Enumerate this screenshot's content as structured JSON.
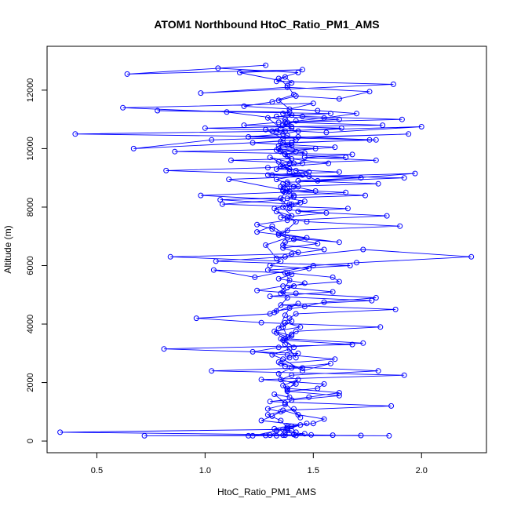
{
  "chart_data": {
    "type": "line",
    "title": "ATOM1 Northbound HtoC_Ratio_PM1_AMS",
    "xlabel": "HtoC_Ratio_PM1_AMS",
    "ylabel": "Altitude (m)",
    "xlim": [
      0.27,
      2.3
    ],
    "ylim": [
      -400,
      13500
    ],
    "xticks": [
      0.5,
      1.0,
      1.5,
      2.0
    ],
    "xtick_labels": [
      "0.5",
      "1.0",
      "1.5",
      "2.0"
    ],
    "yticks": [
      0,
      2000,
      4000,
      6000,
      8000,
      10000,
      12000
    ],
    "ytick_labels": [
      "0",
      "2000",
      "4000",
      "6000",
      "8000",
      "10000",
      "12000"
    ],
    "grid": false,
    "legend": "none",
    "markers": "open-circle",
    "series": [
      {
        "color": "#0000ff",
        "x": [
          1.42,
          1.36,
          1.3,
          1.22,
          1.33,
          1.4,
          1.47,
          1.38,
          1.35,
          1.29,
          1.41,
          1.44,
          1.37,
          1.32,
          1.39,
          1.36,
          1.43,
          1.38,
          1.34,
          1.4,
          1.58,
          1.45,
          1.36,
          1.31,
          1.39,
          1.42,
          1.37,
          1.35,
          1.41,
          1.33,
          1.38,
          1.36,
          1.4,
          1.34,
          1.37,
          1.39,
          1.43,
          1.32,
          1.38,
          1.36,
          1.41,
          1.35,
          1.39,
          1.37,
          1.04,
          1.23,
          1.5,
          1.7,
          2.23,
          1.73,
          1.33,
          1.28,
          1.38,
          1.62,
          1.24,
          1.31,
          1.36,
          1.42,
          1.38,
          1.33,
          1.4,
          1.36,
          1.44,
          1.39,
          1.35,
          1.37,
          1.41,
          1.38,
          1.36,
          1.39,
          1.11,
          1.48,
          1.97,
          1.52,
          1.42,
          1.36,
          1.39,
          1.34,
          1.3,
          1.41,
          1.37,
          1.33,
          1.46,
          1.38,
          1.35,
          0.67,
          1.03,
          1.94,
          1.36,
          1.28,
          1.56,
          2.0,
          1.31,
          1.38,
          1.42,
          1.35,
          1.29,
          1.4,
          1.37,
          1.1,
          0.62,
          1.5,
          1.39,
          1.34,
          1.42,
          1.62,
          1.76,
          1.38,
          0.98,
          1.87,
          1.33,
          1.37,
          1.4,
          1.16,
          1.45,
          0.64,
          1.28,
          1.06,
          1.43,
          1.34,
          1.38,
          1.41,
          1.31,
          1.18,
          1.52,
          1.7,
          1.55,
          1.37,
          1.36,
          1.4,
          1.33,
          1.38,
          1.42,
          1.22,
          1.6,
          1.35,
          1.38,
          1.4,
          1.57,
          1.29,
          0.82,
          1.45,
          1.33,
          1.38,
          1.41,
          1.51,
          0.98,
          1.36,
          1.08,
          1.66,
          1.43,
          1.84,
          1.38,
          1.24,
          1.31,
          1.34,
          1.47,
          1.37,
          1.36,
          1.55,
          1.4,
          0.84,
          1.35,
          1.3,
          1.48,
          1.38,
          1.59,
          1.62,
          1.36,
          1.24,
          1.42,
          1.79,
          1.55,
          1.46,
          1.33,
          1.3,
          0.96,
          1.26,
          1.81,
          1.42,
          1.4,
          1.37,
          1.73,
          1.34,
          1.22,
          1.38,
          1.6,
          1.35,
          1.45,
          1.03,
          1.92,
          1.26,
          1.55,
          1.52,
          1.38,
          1.62,
          1.4,
          1.37,
          1.29,
          1.35,
          1.31,
          1.26,
          1.44,
          1.38,
          0.33,
          1.59,
          1.2,
          1.72,
          0.72,
          1.37,
          1.85,
          1.42,
          1.36,
          1.49,
          1.28,
          1.33,
          1.41,
          1.46,
          1.37,
          1.4,
          1.32,
          1.38,
          1.5,
          1.55,
          1.43,
          1.36,
          1.86,
          1.3,
          1.48,
          1.62,
          1.38,
          1.42,
          1.35,
          1.4,
          1.8,
          1.37,
          1.34,
          1.39,
          1.43,
          0.81,
          1.68,
          1.36,
          1.4,
          1.32,
          1.44,
          1.37,
          1.39,
          1.42,
          1.88,
          1.35,
          1.77,
          1.3,
          1.59,
          1.38,
          1.46,
          1.34,
          1.4,
          1.29,
          1.67,
          1.05,
          1.37,
          1.43,
          1.36,
          1.52,
          1.41,
          1.34,
          1.38,
          1.9,
          1.47,
          1.35,
          1.56,
          1.32,
          1.4,
          1.07,
          1.74,
          1.36,
          1.43,
          1.38,
          1.92,
          1.31,
          1.48,
          1.39,
          1.35,
          1.45,
          1.12,
          1.65,
          1.37,
          1.42,
          1.34,
          1.4,
          1.36,
          1.79,
          1.43,
          0.4,
          1.37,
          1.63,
          1.4,
          1.18,
          1.34,
          1.91,
          1.45,
          1.36,
          1.39,
          0.78,
          1.58,
          1.33,
          1.62,
          1.38,
          1.82,
          1.0,
          1.43,
          1.36,
          1.2,
          1.76,
          1.4,
          1.34,
          1.51,
          0.86,
          1.68,
          1.46,
          1.79,
          1.39,
          1.35,
          1.33,
          1.62,
          1.29,
          1.72,
          1.43,
          1.8,
          1.35,
          1.36,
          1.65,
          1.41,
          1.38,
          1.46,
          1.39
        ],
        "y": [
          300,
          400,
          200,
          180,
          350,
          500,
          600,
          450,
          700,
          900,
          1100,
          800,
          1300,
          1600,
          1500,
          1900,
          2100,
          1750,
          2300,
          2500,
          2650,
          2400,
          2800,
          2950,
          3150,
          2850,
          3300,
          3500,
          3200,
          3700,
          3550,
          3900,
          4100,
          3850,
          4300,
          4550,
          4700,
          4400,
          4900,
          5100,
          5300,
          5050,
          5500,
          5750,
          5850,
          5600,
          6000,
          6100,
          6300,
          6550,
          6250,
          6700,
          6950,
          6800,
          7150,
          7350,
          7100,
          7500,
          7650,
          7850,
          7700,
          8000,
          8150,
          7950,
          8300,
          8500,
          8350,
          8650,
          8800,
          8550,
          8950,
          9050,
          9150,
          8900,
          9250,
          9400,
          9200,
          9550,
          9700,
          9500,
          9800,
          9950,
          9850,
          10100,
          10250,
          10000,
          10300,
          10500,
          10350,
          10650,
          10550,
          10750,
          10600,
          10850,
          10950,
          10700,
          11050,
          11150,
          11000,
          11250,
          11400,
          11550,
          11350,
          11650,
          11800,
          11700,
          11950,
          12100,
          11900,
          12200,
          12300,
          12450,
          12250,
          12600,
          12700,
          12550,
          12850,
          12750,
          12600,
          12400,
          12150,
          11850,
          11600,
          11450,
          11300,
          11200,
          11050,
          10900,
          10800,
          10700,
          10600,
          10450,
          10300,
          10200,
          10050,
          9900,
          9750,
          9650,
          9500,
          9350,
          9250,
          9100,
          8950,
          8800,
          8700,
          8550,
          8400,
          8250,
          8100,
          7950,
          7850,
          7700,
          7550,
          7400,
          7250,
          7100,
          6950,
          6800,
          6700,
          6550,
          6400,
          6300,
          6150,
          6000,
          5900,
          5750,
          5600,
          5450,
          5300,
          5150,
          5050,
          4900,
          4750,
          4600,
          4450,
          4350,
          4200,
          4050,
          3900,
          3750,
          3650,
          3500,
          3350,
          3200,
          3050,
          2950,
          2800,
          2650,
          2500,
          2400,
          2250,
          2100,
          1950,
          1800,
          1700,
          1550,
          1400,
          1250,
          1100,
          1000,
          850,
          700,
          550,
          400,
          300,
          200,
          180,
          190,
          180,
          200,
          180,
          190,
          200,
          210,
          190,
          180,
          220,
          250,
          300,
          350,
          420,
          500,
          600,
          750,
          900,
          1050,
          1200,
          1350,
          1500,
          1650,
          1800,
          1950,
          2100,
          2250,
          2400,
          2550,
          2700,
          2850,
          3000,
          3150,
          3300,
          3450,
          3600,
          3750,
          3900,
          4050,
          4200,
          4350,
          4500,
          4650,
          4800,
          4950,
          5100,
          5250,
          5400,
          5550,
          5700,
          5850,
          6000,
          6150,
          6300,
          6450,
          6600,
          6750,
          6900,
          7050,
          7200,
          7350,
          7500,
          7650,
          7800,
          7950,
          8100,
          8250,
          8400,
          8550,
          8700,
          8850,
          9000,
          9100,
          9200,
          9300,
          9400,
          9500,
          9600,
          9700,
          9800,
          9900,
          10000,
          10100,
          10200,
          10300,
          10400,
          10500,
          10600,
          10700,
          10750,
          10800,
          10900,
          11000,
          11100,
          11200,
          11250,
          11300,
          11200,
          11100,
          11000,
          10900,
          10800,
          10700,
          10600,
          10500,
          10400,
          10300,
          10200,
          10100,
          10000,
          9900,
          9800,
          9700,
          9600,
          9500,
          9400,
          9300,
          9200,
          9100,
          9000,
          8900,
          8800,
          8700,
          8600,
          8500,
          8400,
          8300,
          8200,
          8100
        ]
      }
    ]
  }
}
